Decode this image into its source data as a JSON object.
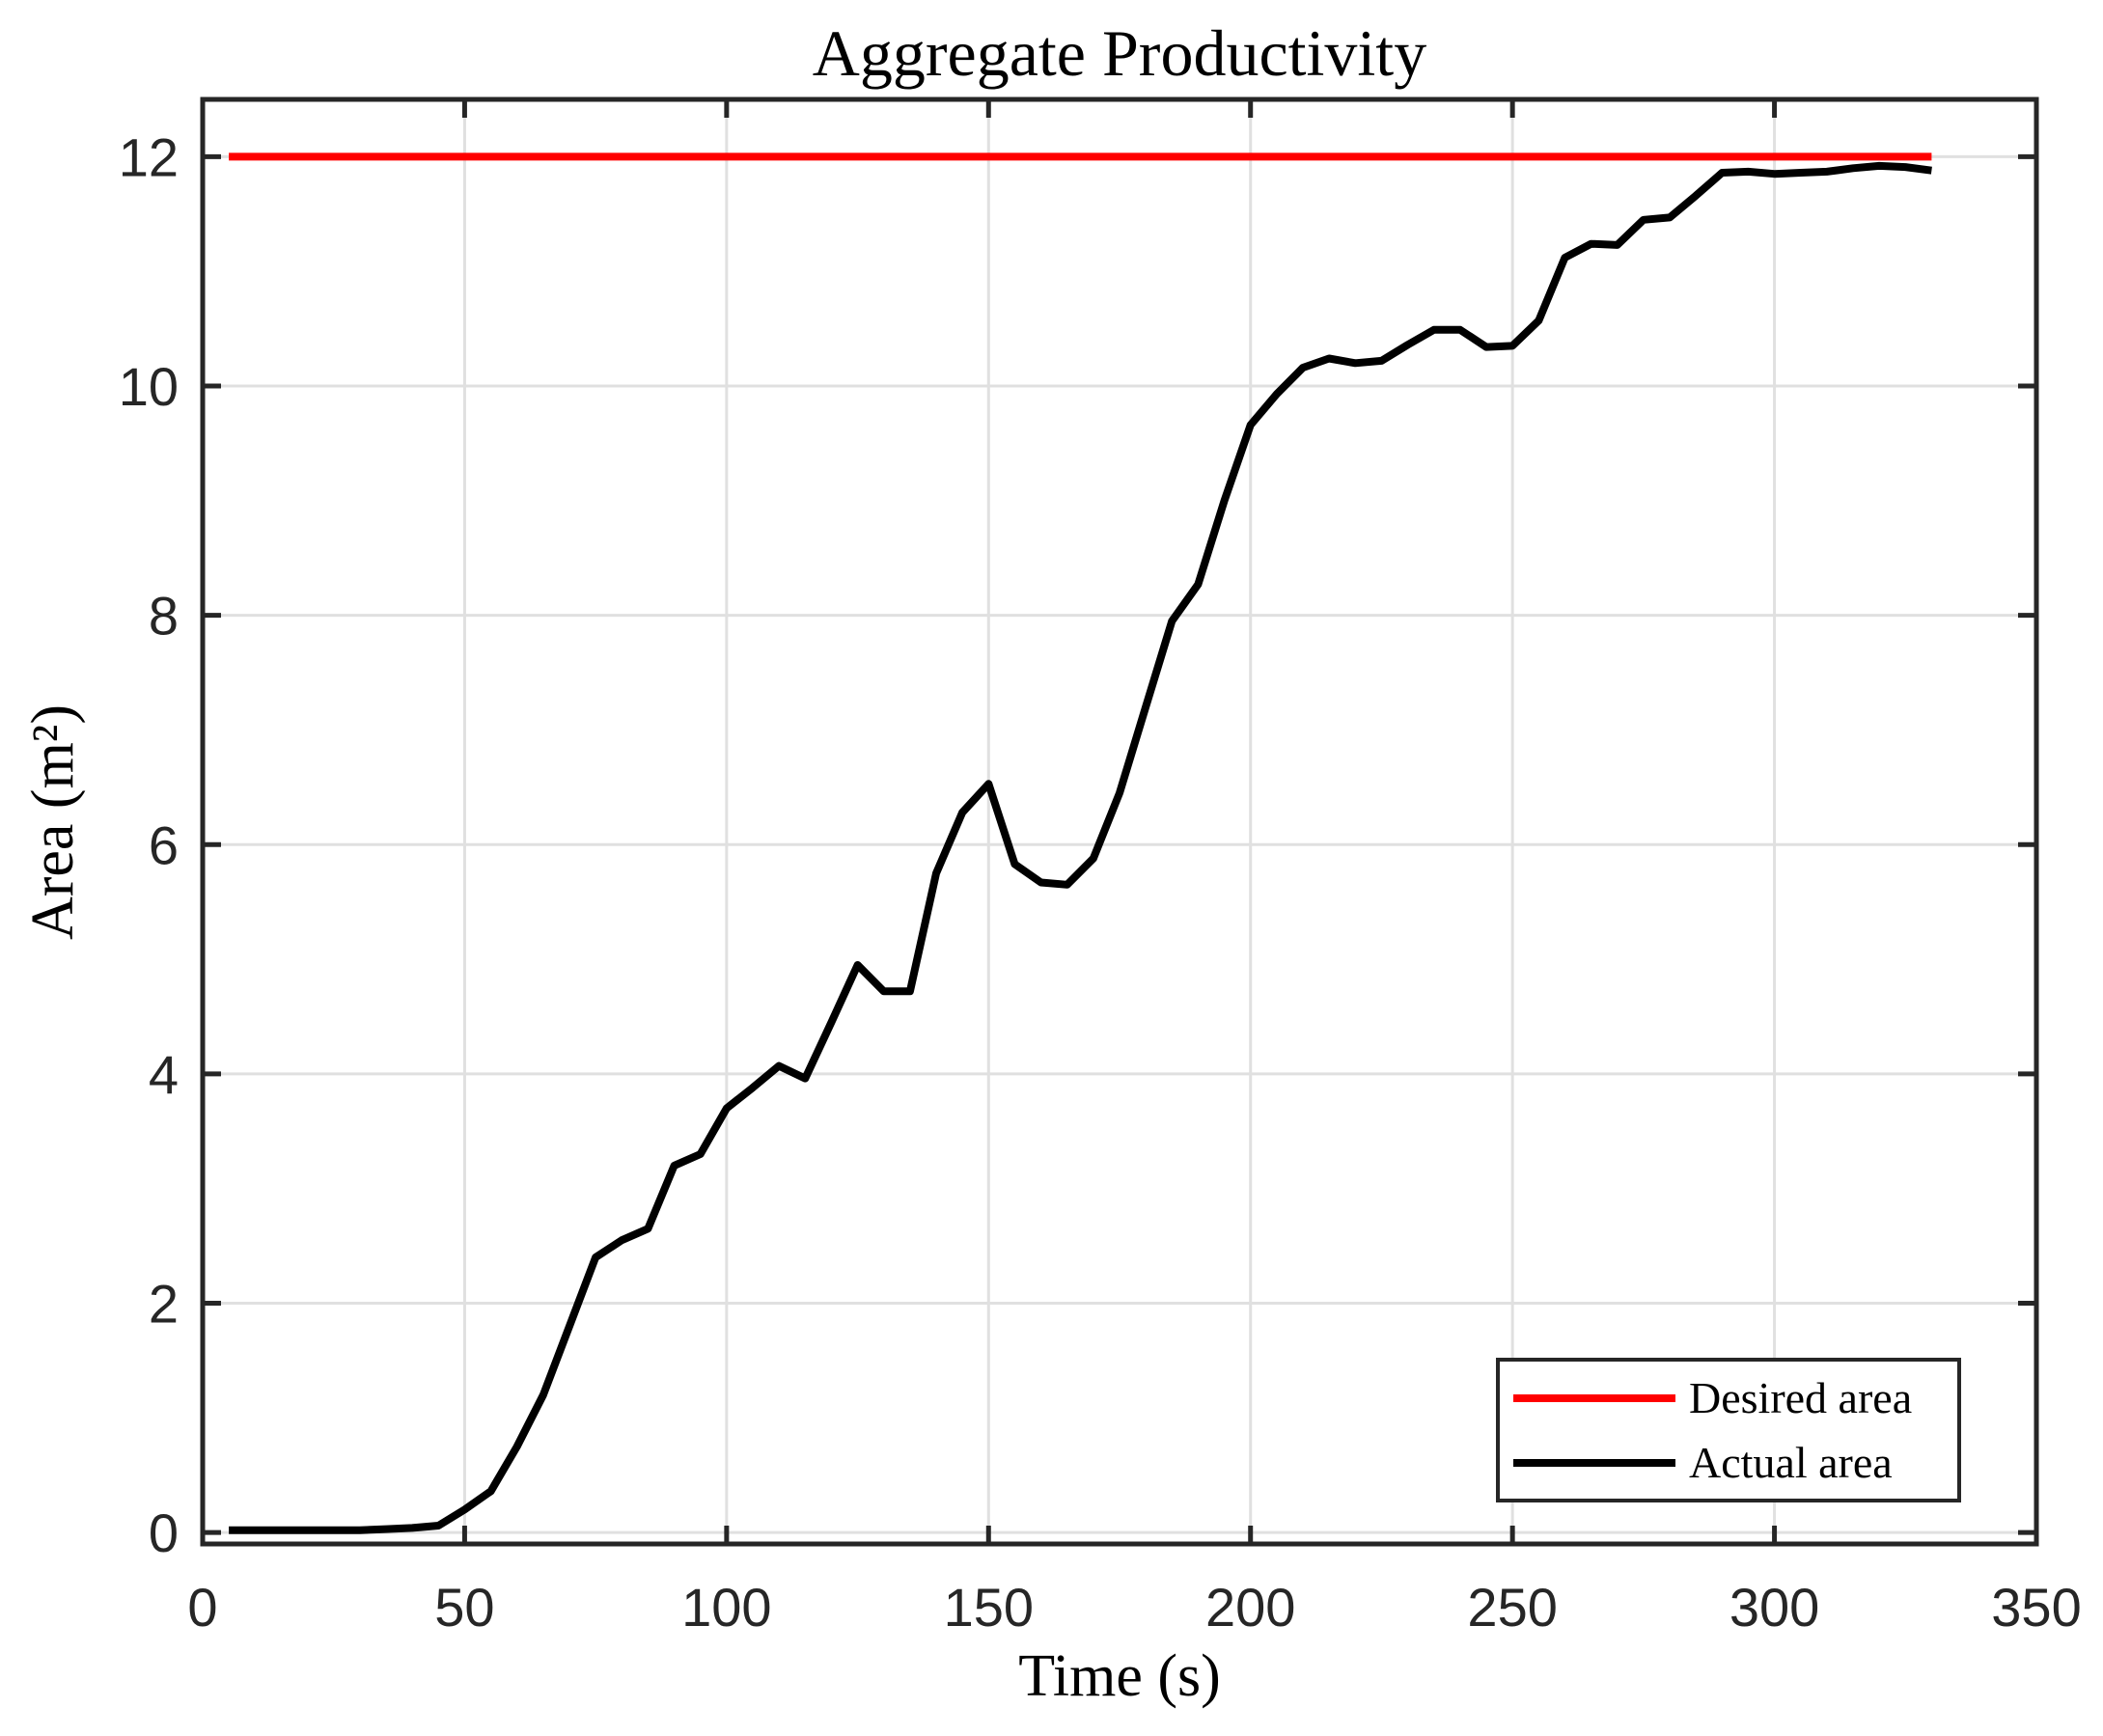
{
  "chart_data": {
    "type": "line",
    "title": "Aggregate Productivity",
    "xlabel": "Time (s)",
    "ylabel": "Area (m²)",
    "xlim": [
      0,
      350
    ],
    "ylim": [
      -0.1,
      12.5
    ],
    "xticks": [
      0,
      50,
      100,
      150,
      200,
      250,
      300,
      350
    ],
    "yticks": [
      0,
      2,
      4,
      6,
      8,
      10,
      12
    ],
    "grid": true,
    "legend_position": "south-east",
    "x": [
      5,
      10,
      15,
      20,
      25,
      30,
      35,
      40,
      45,
      50,
      55,
      60,
      65,
      70,
      75,
      80,
      85,
      90,
      95,
      100,
      105,
      110,
      115,
      120,
      125,
      130,
      135,
      140,
      145,
      150,
      155,
      160,
      165,
      170,
      175,
      180,
      185,
      190,
      195,
      200,
      205,
      210,
      215,
      220,
      225,
      230,
      235,
      240,
      245,
      250,
      255,
      260,
      265,
      270,
      275,
      280,
      285,
      290,
      295,
      300,
      305,
      310,
      315,
      320,
      325,
      330
    ],
    "series": [
      {
        "name": "Desired area",
        "color": "#FF0000",
        "constant_value": 12.0
      },
      {
        "name": "Actual area",
        "color": "#000000",
        "values": [
          0.02,
          0.02,
          0.02,
          0.02,
          0.02,
          0.02,
          0.03,
          0.04,
          0.06,
          0.2,
          0.36,
          0.75,
          1.2,
          1.8,
          2.4,
          2.55,
          2.65,
          3.2,
          3.3,
          3.7,
          3.88,
          4.07,
          3.96,
          4.45,
          4.95,
          4.72,
          4.72,
          5.75,
          6.28,
          6.53,
          5.83,
          5.67,
          5.65,
          5.88,
          6.45,
          7.2,
          7.95,
          8.27,
          9.0,
          9.66,
          9.93,
          10.16,
          10.24,
          10.2,
          10.22,
          10.36,
          10.49,
          10.49,
          10.34,
          10.35,
          10.57,
          11.12,
          11.24,
          11.23,
          11.45,
          11.47,
          11.66,
          11.86,
          11.87,
          11.85,
          11.86,
          11.87,
          11.9,
          11.92,
          11.91,
          11.88
        ]
      }
    ],
    "style": {
      "grid_color": "#E0E0E0",
      "axis_color": "#262626",
      "background": "#FFFFFF",
      "data_line_width": 8,
      "grid_line_width": 3,
      "axis_line_width": 5,
      "tick_length": 19
    }
  }
}
